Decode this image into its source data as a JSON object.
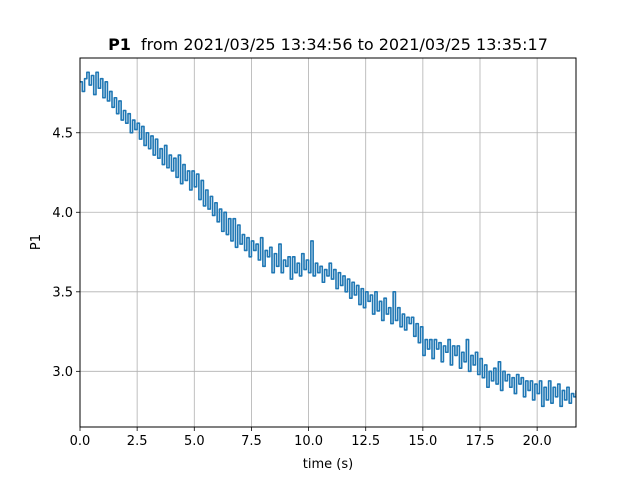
{
  "chart_data": {
    "type": "line",
    "title_bold": "P1",
    "title_rest": "from 2021/03/25 13:34:56 to 2021/03/25 13:35:17",
    "xlabel": "time (s)",
    "ylabel": "P1",
    "xlim": [
      0,
      21.7
    ],
    "ylim": [
      2.65,
      4.97
    ],
    "grid": true,
    "line_color": "#1f77b4",
    "x_ticks": [
      {
        "value": 0,
        "label": "0.0"
      },
      {
        "value": 2.5,
        "label": "2.5"
      },
      {
        "value": 5,
        "label": "5.0"
      },
      {
        "value": 7.5,
        "label": "7.5"
      },
      {
        "value": 10,
        "label": "10.0"
      },
      {
        "value": 12.5,
        "label": "12.5"
      },
      {
        "value": 15,
        "label": "15.0"
      },
      {
        "value": 17.5,
        "label": "17.5"
      },
      {
        "value": 20,
        "label": "20.0"
      }
    ],
    "y_ticks": [
      {
        "value": 3.0,
        "label": "3.0"
      },
      {
        "value": 3.5,
        "label": "3.5"
      },
      {
        "value": 4.0,
        "label": "4.0"
      },
      {
        "value": 4.5,
        "label": "4.5"
      }
    ],
    "series": [
      {
        "x": [
          0.0,
          0.1,
          0.2,
          0.3,
          0.4,
          0.5,
          0.6,
          0.7,
          0.8,
          0.9,
          1.0,
          1.1,
          1.2,
          1.3,
          1.4,
          1.5,
          1.6,
          1.7,
          1.8,
          1.9,
          2.0,
          2.1,
          2.2,
          2.3,
          2.4,
          2.5,
          2.6,
          2.7,
          2.8,
          2.9,
          3.0,
          3.1,
          3.2,
          3.3,
          3.4,
          3.5,
          3.6,
          3.7,
          3.8,
          3.9,
          4.0,
          4.1,
          4.2,
          4.3,
          4.4,
          4.5,
          4.6,
          4.7,
          4.8,
          4.9,
          5.0,
          5.1,
          5.2,
          5.3,
          5.4,
          5.5,
          5.6,
          5.7,
          5.8,
          5.9,
          6.0,
          6.1,
          6.2,
          6.3,
          6.4,
          6.5,
          6.6,
          6.7,
          6.8,
          6.9,
          7.0,
          7.1,
          7.2,
          7.3,
          7.4,
          7.5,
          7.6,
          7.7,
          7.8,
          7.9,
          8.0,
          8.1,
          8.2,
          8.3,
          8.4,
          8.5,
          8.6,
          8.7,
          8.8,
          8.9,
          9.0,
          9.1,
          9.2,
          9.3,
          9.4,
          9.5,
          9.6,
          9.7,
          9.8,
          9.9,
          10.0,
          10.1,
          10.2,
          10.3,
          10.4,
          10.5,
          10.6,
          10.7,
          10.8,
          10.9,
          11.0,
          11.1,
          11.2,
          11.3,
          11.4,
          11.5,
          11.6,
          11.7,
          11.8,
          11.9,
          12.0,
          12.1,
          12.2,
          12.3,
          12.4,
          12.5,
          12.6,
          12.7,
          12.8,
          12.9,
          13.0,
          13.1,
          13.2,
          13.3,
          13.4,
          13.5,
          13.6,
          13.7,
          13.8,
          13.9,
          14.0,
          14.1,
          14.2,
          14.3,
          14.4,
          14.5,
          14.6,
          14.7,
          14.8,
          14.9,
          15.0,
          15.1,
          15.2,
          15.3,
          15.4,
          15.5,
          15.6,
          15.7,
          15.8,
          15.9,
          16.0,
          16.1,
          16.2,
          16.3,
          16.4,
          16.5,
          16.6,
          16.7,
          16.8,
          16.9,
          17.0,
          17.1,
          17.2,
          17.3,
          17.4,
          17.5,
          17.6,
          17.7,
          17.8,
          17.9,
          18.0,
          18.1,
          18.2,
          18.3,
          18.4,
          18.5,
          18.6,
          18.7,
          18.8,
          18.9,
          19.0,
          19.1,
          19.2,
          19.3,
          19.4,
          19.5,
          19.6,
          19.7,
          19.8,
          19.9,
          20.0,
          20.1,
          20.2,
          20.3,
          20.4,
          20.5,
          20.6,
          20.7,
          20.8,
          20.9,
          21.0,
          21.1,
          21.2,
          21.3,
          21.4,
          21.5,
          21.6,
          21.7
        ],
        "y": [
          4.82,
          4.76,
          4.84,
          4.88,
          4.8,
          4.86,
          4.74,
          4.88,
          4.78,
          4.84,
          4.72,
          4.82,
          4.7,
          4.76,
          4.66,
          4.72,
          4.62,
          4.7,
          4.58,
          4.64,
          4.56,
          4.62,
          4.5,
          4.58,
          4.52,
          4.56,
          4.46,
          4.54,
          4.42,
          4.5,
          4.4,
          4.48,
          4.36,
          4.46,
          4.34,
          4.4,
          4.3,
          4.42,
          4.28,
          4.36,
          4.26,
          4.34,
          4.22,
          4.36,
          4.18,
          4.3,
          4.2,
          4.26,
          4.14,
          4.26,
          4.16,
          4.24,
          4.08,
          4.2,
          4.04,
          4.14,
          4.02,
          4.1,
          3.98,
          4.06,
          3.94,
          4.02,
          3.88,
          4.0,
          3.86,
          3.96,
          3.82,
          3.96,
          3.78,
          3.92,
          3.8,
          3.86,
          3.76,
          3.84,
          3.72,
          3.82,
          3.76,
          3.8,
          3.7,
          3.84,
          3.66,
          3.76,
          3.72,
          3.78,
          3.62,
          3.74,
          3.66,
          3.8,
          3.62,
          3.7,
          3.66,
          3.72,
          3.58,
          3.72,
          3.62,
          3.68,
          3.6,
          3.74,
          3.64,
          3.7,
          3.62,
          3.82,
          3.6,
          3.68,
          3.62,
          3.66,
          3.56,
          3.64,
          3.6,
          3.68,
          3.58,
          3.64,
          3.52,
          3.62,
          3.54,
          3.6,
          3.5,
          3.58,
          3.46,
          3.56,
          3.48,
          3.54,
          3.42,
          3.52,
          3.4,
          3.5,
          3.44,
          3.48,
          3.36,
          3.5,
          3.38,
          3.44,
          3.32,
          3.46,
          3.36,
          3.4,
          3.3,
          3.5,
          3.32,
          3.4,
          3.28,
          3.36,
          3.26,
          3.34,
          3.3,
          3.34,
          3.22,
          3.3,
          3.18,
          3.28,
          3.1,
          3.2,
          3.14,
          3.2,
          3.08,
          3.2,
          3.14,
          3.18,
          3.06,
          3.16,
          3.12,
          3.2,
          3.04,
          3.16,
          3.1,
          3.16,
          3.02,
          3.12,
          3.06,
          3.2,
          3.0,
          3.1,
          3.04,
          3.12,
          2.98,
          3.08,
          2.96,
          3.04,
          2.9,
          3.0,
          2.94,
          3.02,
          2.92,
          3.06,
          2.88,
          3.0,
          2.94,
          2.98,
          2.9,
          2.96,
          2.86,
          2.98,
          2.92,
          2.96,
          2.84,
          2.94,
          2.88,
          2.94,
          2.82,
          2.92,
          2.86,
          2.94,
          2.78,
          2.9,
          2.82,
          2.94,
          2.8,
          2.9,
          2.84,
          2.92,
          2.78,
          2.88,
          2.82,
          2.9,
          2.8,
          2.86,
          2.84,
          2.88
        ]
      }
    ]
  }
}
